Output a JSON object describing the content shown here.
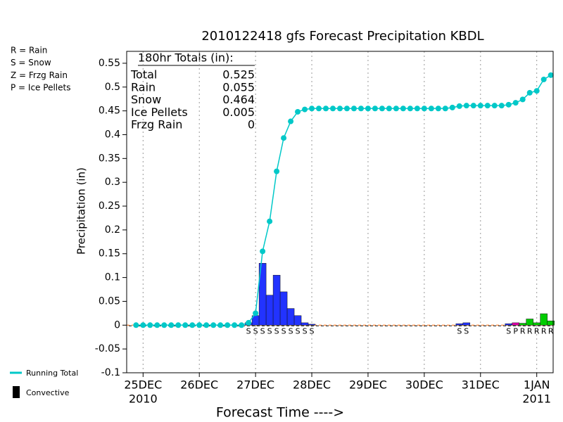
{
  "chart_data": {
    "type": "meteogram",
    "title": "2010122418 gfs Forecast Precipitation KBDL",
    "y_label": "Precipitation (in)",
    "x_label": "Forecast Time ---->",
    "xlim": [
      -1,
      181
    ],
    "ylim": [
      -0.1,
      0.575
    ],
    "yticks": [
      -0.1,
      -0.05,
      0,
      0.05,
      0.1,
      0.15,
      0.2,
      0.25,
      0.3,
      0.35,
      0.4,
      0.45,
      0.5,
      0.55
    ],
    "xticks": [
      {
        "value": 6,
        "label": "25DEC"
      },
      {
        "value": 30,
        "label": "26DEC"
      },
      {
        "value": 54,
        "label": "27DEC"
      },
      {
        "value": 78,
        "label": "28DEC"
      },
      {
        "value": 102,
        "label": "29DEC"
      },
      {
        "value": 126,
        "label": "30DEC"
      },
      {
        "value": 150,
        "label": "31DEC"
      },
      {
        "value": 174,
        "label": "1JAN"
      }
    ],
    "x_year_labels": [
      {
        "value": 6,
        "label": "2010"
      },
      {
        "value": 174,
        "label": "2011"
      }
    ],
    "grid": "x",
    "totals_title": "180hr Totals (in):",
    "totals": [
      {
        "label": "Total",
        "value": 0.525
      },
      {
        "label": "Rain",
        "value": 0.055
      },
      {
        "label": "Snow",
        "value": 0.464
      },
      {
        "label": "Ice Pellets",
        "value": 0.005
      },
      {
        "label": "Frzg Rain",
        "value": 0
      }
    ],
    "precip_legend": [
      {
        "label": "R = Rain",
        "color": "#00cc00"
      },
      {
        "label": "S = Snow",
        "color": "#2233ff"
      },
      {
        "label": "Z = Frzg Rain",
        "color": "#ff9900"
      },
      {
        "label": "P = Ice Pellets",
        "color": "#dd00aa"
      }
    ],
    "x": [
      3,
      6,
      9,
      12,
      15,
      18,
      21,
      24,
      27,
      30,
      33,
      36,
      39,
      42,
      45,
      48,
      51,
      54,
      57,
      60,
      63,
      66,
      69,
      72,
      75,
      78,
      81,
      84,
      87,
      90,
      93,
      96,
      99,
      102,
      105,
      108,
      111,
      114,
      117,
      120,
      123,
      126,
      129,
      132,
      135,
      138,
      141,
      144,
      147,
      150,
      153,
      156,
      159,
      162,
      165,
      168,
      171,
      174,
      177,
      180
    ],
    "running_total": {
      "name": "Running Total",
      "color": "#00c8c8",
      "values": [
        0,
        0,
        0,
        0,
        0,
        0,
        0,
        0,
        0,
        0,
        0,
        0,
        0,
        0,
        0,
        0,
        0.005,
        0.025,
        0.155,
        0.218,
        0.323,
        0.393,
        0.428,
        0.448,
        0.453,
        0.455,
        0.455,
        0.455,
        0.455,
        0.455,
        0.455,
        0.455,
        0.455,
        0.455,
        0.455,
        0.455,
        0.455,
        0.455,
        0.455,
        0.455,
        0.455,
        0.455,
        0.455,
        0.455,
        0.455,
        0.457,
        0.46,
        0.461,
        0.461,
        0.461,
        0.461,
        0.461,
        0.461,
        0.463,
        0.467,
        0.474,
        0.488,
        0.492,
        0.516,
        0.525
      ]
    },
    "bars": [
      {
        "code": "S",
        "color": "#2233ff",
        "x": [
          51,
          54,
          57,
          60,
          63,
          66,
          69,
          72,
          75,
          78,
          141,
          144,
          162
        ],
        "values": [
          0.005,
          0.02,
          0.13,
          0.063,
          0.105,
          0.07,
          0.035,
          0.02,
          0.005,
          0.002,
          0.003,
          0.005,
          0.003
        ]
      },
      {
        "code": "P",
        "color": "#dd00aa",
        "x": [
          165
        ],
        "values": [
          0.005
        ]
      },
      {
        "code": "R",
        "color": "#00cc00",
        "x": [
          168,
          171,
          174,
          177,
          180
        ],
        "values": [
          0.004,
          0.013,
          0.005,
          0.024,
          0.009
        ]
      }
    ],
    "convective": {
      "name": "Convective",
      "color": "#000000"
    }
  }
}
